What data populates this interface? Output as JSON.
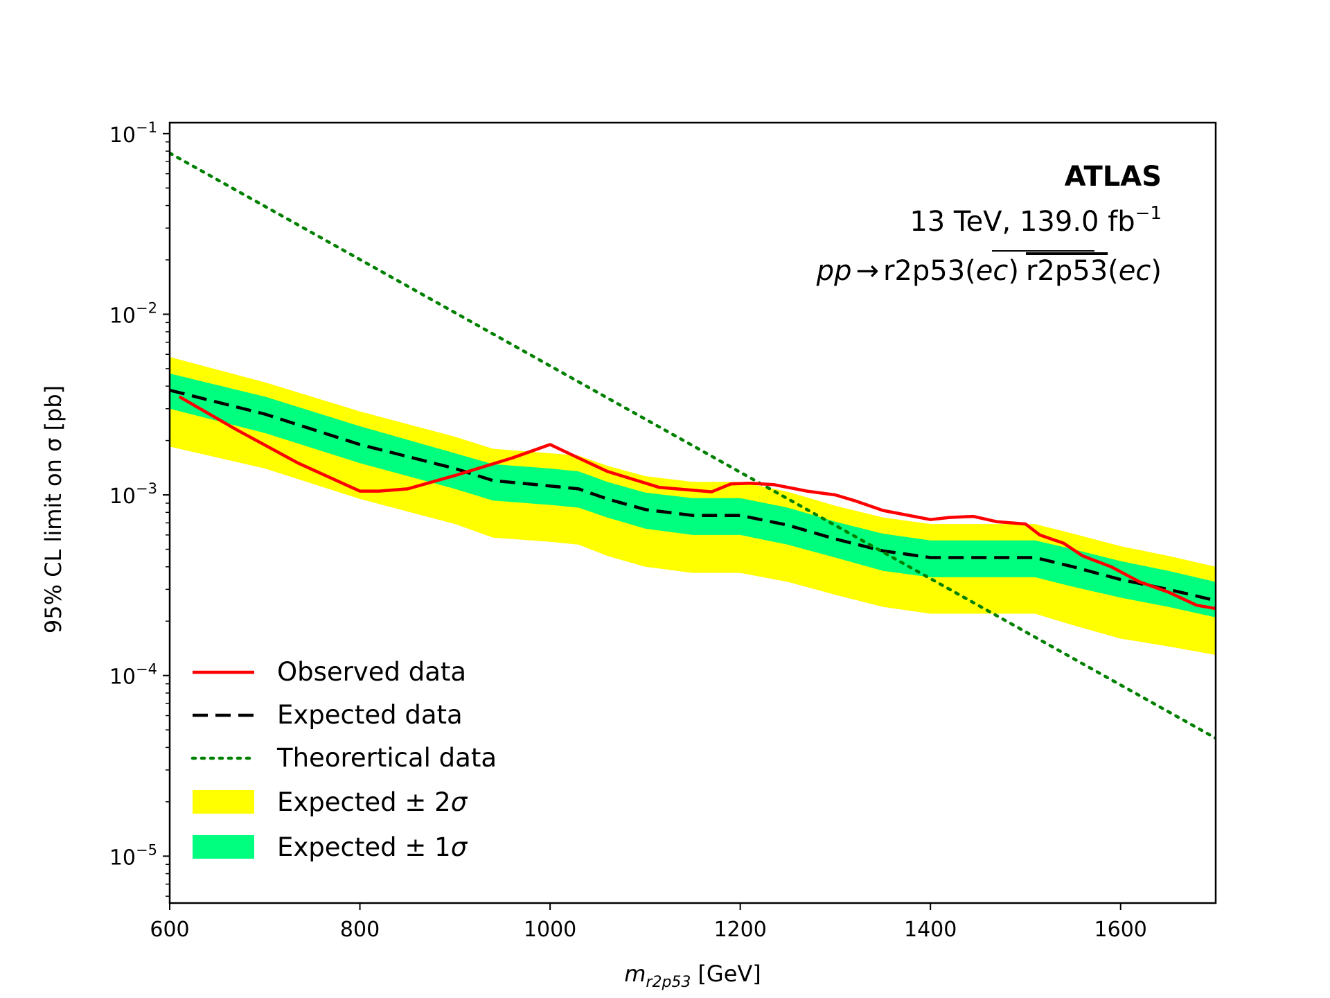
{
  "chart_data": {
    "type": "line",
    "title": "",
    "xlabel": "m",
    "xlabel_sub": "r2p53",
    "xlabel_unit": "[GeV]",
    "ylabel": "95% CL limit on σ [pb]",
    "xlim": [
      600,
      1700
    ],
    "ylim": [
      5.5e-06,
      0.115
    ],
    "yscale": "log",
    "x_ticks": [
      600,
      800,
      1000,
      1200,
      1400,
      1600
    ],
    "x_tick_labels": [
      "600",
      "800",
      "1000",
      "1200",
      "1400",
      "1600"
    ],
    "y_ticks": [
      {
        "value": 0.1,
        "base": "10",
        "exp": "−1"
      },
      {
        "value": 0.01,
        "base": "10",
        "exp": "−2"
      },
      {
        "value": 0.001,
        "base": "10",
        "exp": "−3"
      },
      {
        "value": 0.0001,
        "base": "10",
        "exp": "−4"
      },
      {
        "value": 1e-05,
        "base": "10",
        "exp": "−5"
      }
    ],
    "grid": false,
    "legend_position": "bottom-left",
    "annotations": {
      "experiment": "ATLAS",
      "energy_prefix": "13 TeV, 139.0 fb",
      "energy_exp": "−1",
      "process_pp": "pp",
      "process_arrow": "→",
      "process_particle": "r2p53",
      "process_open": "(",
      "process_ec": "ec",
      "process_close": ")",
      "process_bar_particle": "r2p53"
    },
    "series": [
      {
        "name": "Observed data",
        "style": "solid",
        "color": "#ff0000",
        "x": [
          610,
          670,
          735,
          800,
          820,
          850,
          900,
          960,
          1000,
          1030,
          1060,
          1115,
          1170,
          1190,
          1210,
          1235,
          1270,
          1300,
          1320,
          1350,
          1400,
          1420,
          1445,
          1470,
          1500,
          1515,
          1540,
          1560,
          1590,
          1620,
          1650,
          1680,
          1700
        ],
        "y": [
          0.0035,
          0.0023,
          0.0015,
          0.00105,
          0.00105,
          0.00108,
          0.00128,
          0.0016,
          0.0019,
          0.0016,
          0.00135,
          0.0011,
          0.00104,
          0.00115,
          0.00116,
          0.00114,
          0.00105,
          0.001,
          0.00093,
          0.00082,
          0.00073,
          0.00075,
          0.00076,
          0.00071,
          0.00069,
          0.0006,
          0.00054,
          0.00046,
          0.0004,
          0.00033,
          0.00029,
          0.000245,
          0.000235
        ]
      },
      {
        "name": "Expected data",
        "style": "dashed",
        "color": "#000000",
        "x": [
          600,
          700,
          800,
          900,
          940,
          1000,
          1030,
          1060,
          1100,
          1150,
          1200,
          1250,
          1300,
          1350,
          1400,
          1450,
          1510,
          1550,
          1600,
          1650,
          1700
        ],
        "y": [
          0.0038,
          0.0028,
          0.0019,
          0.0014,
          0.0012,
          0.00112,
          0.00108,
          0.00095,
          0.00083,
          0.00077,
          0.00077,
          0.00068,
          0.00057,
          0.00049,
          0.00045,
          0.00045,
          0.00045,
          0.0004,
          0.00034,
          0.0003,
          0.00026
        ]
      },
      {
        "name": "Theorertical data",
        "style": "dotted",
        "color": "#008000",
        "x": [
          600,
          1700
        ],
        "y": [
          0.078,
          4.5e-05
        ]
      }
    ],
    "bands": [
      {
        "name": "Expected ± 2σ",
        "color": "#ffff00",
        "x": [
          600,
          700,
          800,
          900,
          940,
          1000,
          1030,
          1060,
          1100,
          1150,
          1200,
          1250,
          1300,
          1350,
          1400,
          1450,
          1510,
          1550,
          1600,
          1650,
          1700
        ],
        "lower": [
          0.00185,
          0.0014,
          0.00095,
          0.00069,
          0.00058,
          0.00055,
          0.00053,
          0.00046,
          0.0004,
          0.00037,
          0.00037,
          0.00033,
          0.00028,
          0.00024,
          0.00022,
          0.00022,
          0.00022,
          0.00019,
          0.00016,
          0.000145,
          0.00013
        ],
        "upper": [
          0.0058,
          0.0042,
          0.0029,
          0.0021,
          0.0018,
          0.0017,
          0.00165,
          0.00145,
          0.00127,
          0.00118,
          0.00118,
          0.00104,
          0.00087,
          0.00075,
          0.00069,
          0.00069,
          0.00069,
          0.00061,
          0.00052,
          0.00046,
          0.0004
        ]
      },
      {
        "name": "Expected ± 1σ",
        "color": "#00ff7f",
        "x": [
          600,
          700,
          800,
          900,
          940,
          1000,
          1030,
          1060,
          1100,
          1150,
          1200,
          1250,
          1300,
          1350,
          1400,
          1450,
          1510,
          1550,
          1600,
          1650,
          1700
        ],
        "lower": [
          0.003,
          0.0022,
          0.0015,
          0.00108,
          0.00093,
          0.00088,
          0.00085,
          0.00075,
          0.00065,
          0.0006,
          0.0006,
          0.00053,
          0.00045,
          0.00038,
          0.00035,
          0.00035,
          0.00035,
          0.00031,
          0.00027,
          0.00024,
          0.00021
        ],
        "upper": [
          0.0047,
          0.0035,
          0.0024,
          0.0017,
          0.00148,
          0.0014,
          0.00135,
          0.00118,
          0.00103,
          0.00096,
          0.00096,
          0.00085,
          0.00071,
          0.00061,
          0.00056,
          0.00056,
          0.00056,
          0.0005,
          0.00043,
          0.00038,
          0.00033
        ]
      }
    ],
    "legend_order": [
      "Observed data",
      "Expected data",
      "Theorertical data",
      "Expected ± 2σ",
      "Expected ± 1σ"
    ]
  }
}
